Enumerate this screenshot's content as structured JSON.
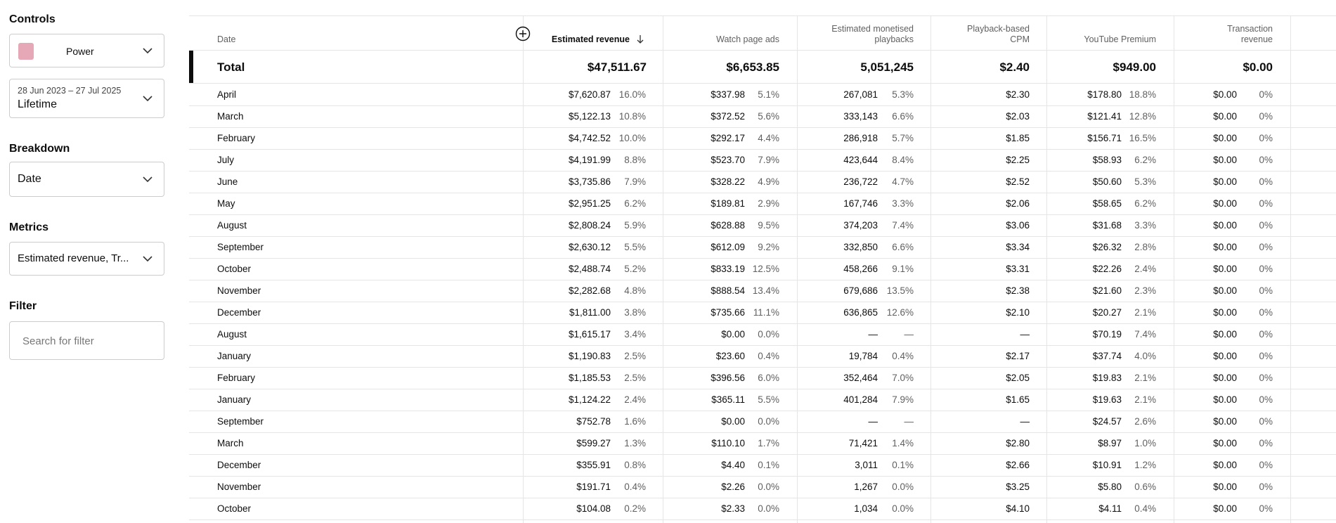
{
  "sidebar": {
    "controls_title": "Controls",
    "channel": "Power",
    "date_range": "28 Jun 2023 – 27 Jul 2025",
    "date_preset": "Lifetime",
    "breakdown_title": "Breakdown",
    "breakdown": "Date",
    "metrics_title": "Metrics",
    "metrics": "Estimated revenue, Tr...",
    "filter_title": "Filter",
    "filter_placeholder": "Search for filter"
  },
  "table": {
    "headers": [
      "Date",
      "Estimated revenue",
      "Watch page ads",
      "Estimated monetised playbacks",
      "Playback-based CPM",
      "YouTube Premium",
      "Transaction revenue"
    ],
    "total": [
      "Total",
      "$47,511.67",
      "$6,653.85",
      "5,051,245",
      "$2.40",
      "$949.00",
      "$0.00"
    ],
    "rows": [
      [
        "April",
        "$7,620.87",
        "16.0%",
        "$337.98",
        "5.1%",
        "267,081",
        "5.3%",
        "$2.30",
        "$178.80",
        "18.8%",
        "$0.00",
        "0%"
      ],
      [
        "March",
        "$5,122.13",
        "10.8%",
        "$372.52",
        "5.6%",
        "333,143",
        "6.6%",
        "$2.03",
        "$121.41",
        "12.8%",
        "$0.00",
        "0%"
      ],
      [
        "February",
        "$4,742.52",
        "10.0%",
        "$292.17",
        "4.4%",
        "286,918",
        "5.7%",
        "$1.85",
        "$156.71",
        "16.5%",
        "$0.00",
        "0%"
      ],
      [
        "July",
        "$4,191.99",
        "8.8%",
        "$523.70",
        "7.9%",
        "423,644",
        "8.4%",
        "$2.25",
        "$58.93",
        "6.2%",
        "$0.00",
        "0%"
      ],
      [
        "June",
        "$3,735.86",
        "7.9%",
        "$328.22",
        "4.9%",
        "236,722",
        "4.7%",
        "$2.52",
        "$50.60",
        "5.3%",
        "$0.00",
        "0%"
      ],
      [
        "May",
        "$2,951.25",
        "6.2%",
        "$189.81",
        "2.9%",
        "167,746",
        "3.3%",
        "$2.06",
        "$58.65",
        "6.2%",
        "$0.00",
        "0%"
      ],
      [
        "August",
        "$2,808.24",
        "5.9%",
        "$628.88",
        "9.5%",
        "374,203",
        "7.4%",
        "$3.06",
        "$31.68",
        "3.3%",
        "$0.00",
        "0%"
      ],
      [
        "September",
        "$2,630.12",
        "5.5%",
        "$612.09",
        "9.2%",
        "332,850",
        "6.6%",
        "$3.34",
        "$26.32",
        "2.8%",
        "$0.00",
        "0%"
      ],
      [
        "October",
        "$2,488.74",
        "5.2%",
        "$833.19",
        "12.5%",
        "458,266",
        "9.1%",
        "$3.31",
        "$22.26",
        "2.4%",
        "$0.00",
        "0%"
      ],
      [
        "November",
        "$2,282.68",
        "4.8%",
        "$888.54",
        "13.4%",
        "679,686",
        "13.5%",
        "$2.38",
        "$21.60",
        "2.3%",
        "$0.00",
        "0%"
      ],
      [
        "December",
        "$1,811.00",
        "3.8%",
        "$735.66",
        "11.1%",
        "636,865",
        "12.6%",
        "$2.10",
        "$20.27",
        "2.1%",
        "$0.00",
        "0%"
      ],
      [
        "August",
        "$1,615.17",
        "3.4%",
        "$0.00",
        "0.0%",
        "—",
        "—",
        "—",
        "$70.19",
        "7.4%",
        "$0.00",
        "0%"
      ],
      [
        "January",
        "$1,190.83",
        "2.5%",
        "$23.60",
        "0.4%",
        "19,784",
        "0.4%",
        "$2.17",
        "$37.74",
        "4.0%",
        "$0.00",
        "0%"
      ],
      [
        "February",
        "$1,185.53",
        "2.5%",
        "$396.56",
        "6.0%",
        "352,464",
        "7.0%",
        "$2.05",
        "$19.83",
        "2.1%",
        "$0.00",
        "0%"
      ],
      [
        "January",
        "$1,124.22",
        "2.4%",
        "$365.11",
        "5.5%",
        "401,284",
        "7.9%",
        "$1.65",
        "$19.63",
        "2.1%",
        "$0.00",
        "0%"
      ],
      [
        "September",
        "$752.78",
        "1.6%",
        "$0.00",
        "0.0%",
        "—",
        "—",
        "—",
        "$24.57",
        "2.6%",
        "$0.00",
        "0%"
      ],
      [
        "March",
        "$599.27",
        "1.3%",
        "$110.10",
        "1.7%",
        "71,421",
        "1.4%",
        "$2.80",
        "$8.97",
        "1.0%",
        "$0.00",
        "0%"
      ],
      [
        "December",
        "$355.91",
        "0.8%",
        "$4.40",
        "0.1%",
        "3,011",
        "0.1%",
        "$2.66",
        "$10.91",
        "1.2%",
        "$0.00",
        "0%"
      ],
      [
        "November",
        "$191.71",
        "0.4%",
        "$2.26",
        "0.0%",
        "1,267",
        "0.0%",
        "$3.25",
        "$5.80",
        "0.6%",
        "$0.00",
        "0%"
      ],
      [
        "October",
        "$104.08",
        "0.2%",
        "$2.33",
        "0.0%",
        "1,034",
        "0.0%",
        "$4.10",
        "$4.11",
        "0.4%",
        "$0.00",
        "0%"
      ]
    ]
  }
}
